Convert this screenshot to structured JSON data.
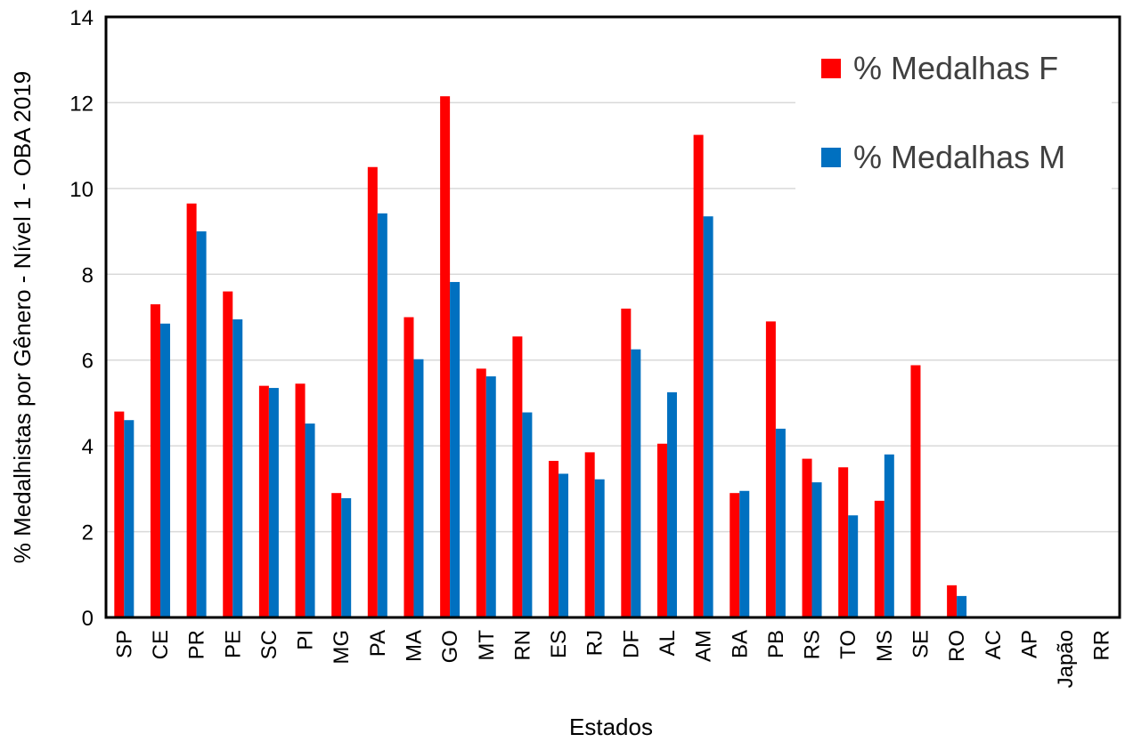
{
  "chart_data": {
    "type": "bar",
    "title": "",
    "xlabel": "Estados",
    "ylabel": "% Medalhistas por Gênero - Nível 1 - OBA 2019",
    "ylim": [
      0,
      14
    ],
    "yticks": [
      0,
      2,
      4,
      6,
      8,
      10,
      12,
      14
    ],
    "grid": true,
    "legend_position": "top-right",
    "categories": [
      "SP",
      "CE",
      "PR",
      "PE",
      "SC",
      "PI",
      "MG",
      "PA",
      "MA",
      "GO",
      "MT",
      "RN",
      "ES",
      "RJ",
      "DF",
      "AL",
      "AM",
      "BA",
      "PB",
      "RS",
      "TO",
      "MS",
      "SE",
      "RO",
      "AC",
      "AP",
      "Japão",
      "RR"
    ],
    "series": [
      {
        "name": "% Medalhas F",
        "color": "#FF0000",
        "values": [
          4.8,
          7.3,
          9.65,
          7.6,
          5.4,
          5.45,
          2.9,
          10.5,
          7.0,
          12.15,
          5.8,
          6.55,
          3.65,
          3.85,
          7.2,
          4.05,
          11.25,
          2.9,
          6.9,
          3.7,
          3.5,
          2.72,
          5.88,
          0.75,
          0,
          0,
          0,
          0
        ]
      },
      {
        "name": "% Medalhas M",
        "color": "#0070C0",
        "values": [
          4.6,
          6.85,
          9.0,
          6.95,
          5.35,
          4.52,
          2.78,
          9.42,
          6.02,
          7.82,
          5.62,
          4.78,
          3.35,
          3.22,
          6.25,
          5.25,
          9.35,
          2.95,
          4.4,
          3.15,
          2.38,
          3.8,
          0,
          0.5,
          0,
          0,
          0,
          0
        ]
      }
    ]
  }
}
